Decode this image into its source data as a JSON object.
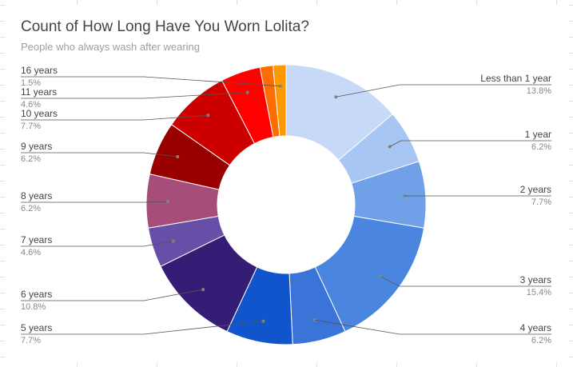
{
  "chart_data": {
    "type": "pie",
    "donut": true,
    "title": "Count of How Long Have You Worn Lolita?",
    "subtitle": "People who always wash after wearing",
    "slices": [
      {
        "label": "Less than 1 year",
        "pct_label": "13.8%",
        "value": 13.8,
        "color": "#c6d9f7",
        "side": "right"
      },
      {
        "label": "1 year",
        "pct_label": "6.2%",
        "value": 6.2,
        "color": "#a8c6f3",
        "side": "right"
      },
      {
        "label": "2 years",
        "pct_label": "7.7%",
        "value": 7.7,
        "color": "#6fa0e8",
        "side": "right"
      },
      {
        "label": "3 years",
        "pct_label": "15.4%",
        "value": 15.4,
        "color": "#4a86e0",
        "side": "right"
      },
      {
        "label": "4 years",
        "pct_label": "6.2%",
        "value": 6.2,
        "color": "#3a74d8",
        "side": "right"
      },
      {
        "label": "5 years",
        "pct_label": "7.7%",
        "value": 7.7,
        "color": "#1155cc",
        "side": "left"
      },
      {
        "label": "6 years",
        "pct_label": "10.8%",
        "value": 10.8,
        "color": "#351c75",
        "side": "left"
      },
      {
        "label": "7 years",
        "pct_label": "4.6%",
        "value": 4.6,
        "color": "#674ea7",
        "side": "left"
      },
      {
        "label": "8 years",
        "pct_label": "6.2%",
        "value": 6.2,
        "color": "#a64d79",
        "side": "left"
      },
      {
        "label": "9 years",
        "pct_label": "6.2%",
        "value": 6.2,
        "color": "#990000",
        "side": "left"
      },
      {
        "label": "10 years",
        "pct_label": "7.7%",
        "value": 7.7,
        "color": "#cc0000",
        "side": "left"
      },
      {
        "label": "11 years",
        "pct_label": "4.6%",
        "value": 4.6,
        "color": "#ff0000",
        "side": "left"
      },
      {
        "label": "",
        "pct_label": "",
        "value": 1.5,
        "color": "#ff6d01",
        "side": "none"
      },
      {
        "label": "16 years",
        "pct_label": "1.5%",
        "value": 1.5,
        "color": "#ff9900",
        "side": "left"
      }
    ],
    "legend": "none"
  }
}
